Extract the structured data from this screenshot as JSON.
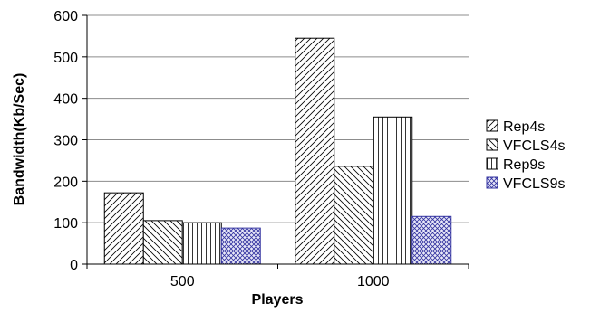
{
  "chart_data": {
    "type": "bar",
    "title": "",
    "xlabel": "Players",
    "ylabel": "Bandwidth(Kb/Sec)",
    "ylim": [
      0,
      600
    ],
    "yticks": [
      "0",
      "100",
      "200",
      "300",
      "400",
      "500",
      "600"
    ],
    "categories": [
      "500",
      "1000"
    ],
    "grid": "horizontal",
    "legend_position": "right",
    "series": [
      {
        "name": "Rep4s",
        "values": [
          172,
          545
        ],
        "pattern": "diagonal-up",
        "color": "#000000"
      },
      {
        "name": "VFCLS4s",
        "values": [
          105,
          236
        ],
        "pattern": "diagonal-down",
        "color": "#000000"
      },
      {
        "name": "Rep9s",
        "values": [
          100,
          355
        ],
        "pattern": "vertical",
        "color": "#000000"
      },
      {
        "name": "VFCLS9s",
        "values": [
          87,
          115
        ],
        "pattern": "crosshatch",
        "color": "#3333a0"
      }
    ]
  }
}
